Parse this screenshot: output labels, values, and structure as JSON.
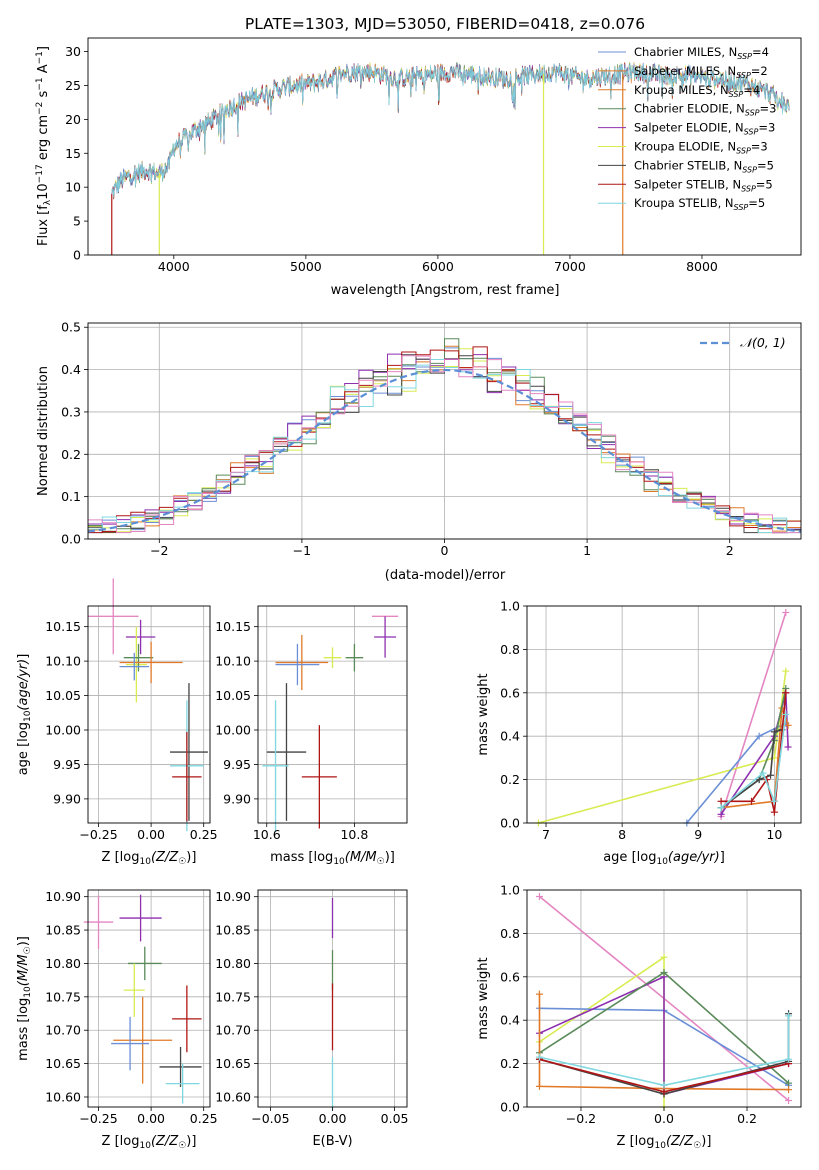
{
  "figure": {
    "title": "PLATE=1303, MJD=53050, FIBERID=0418, z=0.076"
  },
  "palette": {
    "Chabrier MILES": "#6b8fd6",
    "Salpeter MILES": "#e07a28",
    "Kroupa MILES": "#e07a28",
    "Chabrier ELODIE": "#5a8a5a",
    "Salpeter ELODIE": "#8e2fb0",
    "Kroupa ELODIE": "#d8ec52",
    "Chabrier STELIB": "#444444",
    "Salpeter STELIB": "#b01515",
    "Kroupa STELIB": "#7fd8e0",
    "pink": "#e486c2",
    "gaussian": "#5b8fd6"
  },
  "legend_labels": [
    {
      "name": "Chabrier MILES",
      "text": "Chabrier MILES, N",
      "sub": "SSP",
      "tail": "=4"
    },
    {
      "name": "Salpeter MILES",
      "text": "Salpeter MILES, N",
      "sub": "SSP",
      "tail": "=2"
    },
    {
      "name": "Kroupa MILES",
      "text": "Kroupa MILES, N",
      "sub": "SSP",
      "tail": "=4"
    },
    {
      "name": "Chabrier ELODIE",
      "text": "Chabrier ELODIE, N",
      "sub": "SSP",
      "tail": "=3"
    },
    {
      "name": "Salpeter ELODIE",
      "text": "Salpeter ELODIE, N",
      "sub": "SSP",
      "tail": "=3"
    },
    {
      "name": "Kroupa ELODIE",
      "text": "Kroupa ELODIE, N",
      "sub": "SSP",
      "tail": "=3"
    },
    {
      "name": "Chabrier STELIB",
      "text": "Chabrier STELIB, N",
      "sub": "SSP",
      "tail": "=5"
    },
    {
      "name": "Salpeter STELIB",
      "text": "Salpeter STELIB, N",
      "sub": "SSP",
      "tail": "=5"
    },
    {
      "name": "Kroupa STELIB",
      "text": "Kroupa STELIB, N",
      "sub": "SSP",
      "tail": "=5"
    }
  ],
  "chart_data": [
    {
      "id": "spectrum",
      "type": "line",
      "xlabel": "wavelength [Angstrom, rest frame]",
      "ylabel": "Flux [fλ10⁻¹⁷ erg cm⁻² s⁻¹ A⁻¹]",
      "xlim": [
        3350,
        8750
      ],
      "ylim": [
        0,
        32
      ],
      "xticks": [
        4000,
        5000,
        6000,
        7000,
        8000
      ],
      "yticks": [
        0,
        5,
        10,
        15,
        20,
        25,
        30
      ],
      "continuum": [
        [
          3530,
          9
        ],
        [
          3600,
          11
        ],
        [
          3700,
          12
        ],
        [
          3800,
          12.5
        ],
        [
          3880,
          12
        ],
        [
          3960,
          13
        ],
        [
          4000,
          16
        ],
        [
          4100,
          17.5
        ],
        [
          4200,
          19
        ],
        [
          4300,
          20
        ],
        [
          4400,
          21.5
        ],
        [
          4500,
          22.5
        ],
        [
          4700,
          24
        ],
        [
          4900,
          25
        ],
        [
          5100,
          25.5
        ],
        [
          5300,
          27
        ],
        [
          5500,
          27
        ],
        [
          5700,
          26
        ],
        [
          5900,
          26.5
        ],
        [
          6100,
          27
        ],
        [
          6300,
          26.5
        ],
        [
          6500,
          26
        ],
        [
          6700,
          26.5
        ],
        [
          6900,
          27
        ],
        [
          7100,
          26
        ],
        [
          7300,
          26.5
        ],
        [
          7500,
          27
        ],
        [
          7700,
          26.5
        ],
        [
          7900,
          26.5
        ],
        [
          8100,
          26
        ],
        [
          8300,
          25.5
        ],
        [
          8500,
          24
        ],
        [
          8650,
          22
        ]
      ],
      "legend_position": "upper-right",
      "grid": false
    },
    {
      "id": "residuals",
      "type": "histogram",
      "xlabel": "(data-model)/error",
      "ylabel": "Normed distribution",
      "xlim": [
        -2.5,
        2.5
      ],
      "ylim": [
        0,
        0.51
      ],
      "xticks": [
        -2,
        -1,
        0,
        1,
        2
      ],
      "yticks": [
        0.0,
        0.1,
        0.2,
        0.3,
        0.4,
        0.5
      ],
      "bin_width": 0.1,
      "gaussian_label": "N(0,1)",
      "legend_position": "upper-right",
      "grid": true
    },
    {
      "id": "age-vs-Z",
      "type": "scatter",
      "xlabel": "Z [log10(Z/Z☉)]",
      "ylabel": "age [log10(age/yr)]",
      "xlim": [
        -0.3,
        0.28
      ],
      "ylim": [
        9.865,
        10.18
      ],
      "xticks": [
        -0.25,
        0.0,
        0.25
      ],
      "yticks": [
        9.9,
        9.95,
        10.0,
        10.05,
        10.1,
        10.15
      ],
      "points": [
        {
          "c": "pink",
          "x": -0.18,
          "xerr": 0.12,
          "y": 10.165,
          "yerr": 0.055
        },
        {
          "c": "Salpeter ELODIE",
          "x": -0.05,
          "xerr": 0.07,
          "y": 10.135,
          "yerr": 0.025
        },
        {
          "c": "Kroupa ELODIE",
          "x": -0.07,
          "xerr": 0.05,
          "y": 10.095,
          "yerr": 0.055
        },
        {
          "c": "Chabrier ELODIE",
          "x": -0.06,
          "xerr": 0.07,
          "y": 10.105,
          "yerr": 0.02
        },
        {
          "c": "Kroupa MILES",
          "x": 0.0,
          "xerr": 0.15,
          "y": 10.098,
          "yerr": 0.03
        },
        {
          "c": "Chabrier MILES",
          "x": -0.08,
          "xerr": 0.07,
          "y": 10.092,
          "yerr": 0.02
        },
        {
          "c": "Chabrier STELIB",
          "x": 0.18,
          "xerr": 0.09,
          "y": 9.968,
          "yerr": 0.1
        },
        {
          "c": "Kroupa STELIB",
          "x": 0.17,
          "xerr": 0.08,
          "y": 9.948,
          "yerr": 0.095
        },
        {
          "c": "Salpeter STELIB",
          "x": 0.17,
          "xerr": 0.07,
          "y": 9.932,
          "yerr": 0.065
        }
      ],
      "grid": true
    },
    {
      "id": "age-vs-mass",
      "type": "scatter",
      "xlabel": "mass [log10(M/M☉)]",
      "ylabel": "",
      "xlim": [
        10.58,
        10.92
      ],
      "ylim": [
        9.865,
        10.18
      ],
      "xticks": [
        10.6,
        10.8
      ],
      "yticks": [
        9.9,
        9.95,
        10.0,
        10.05,
        10.1,
        10.15
      ],
      "points": [
        {
          "c": "pink",
          "x": 10.87,
          "xerr": 0.03,
          "y": 10.165,
          "yerr": 0.0
        },
        {
          "c": "Salpeter ELODIE",
          "x": 10.87,
          "xerr": 0.025,
          "y": 10.135,
          "yerr": 0.03
        },
        {
          "c": "Chabrier ELODIE",
          "x": 10.8,
          "xerr": 0.02,
          "y": 10.105,
          "yerr": 0.02
        },
        {
          "c": "Kroupa ELODIE",
          "x": 10.75,
          "xerr": 0.02,
          "y": 10.105,
          "yerr": 0.015
        },
        {
          "c": "Kroupa MILES",
          "x": 10.68,
          "xerr": 0.06,
          "y": 10.098,
          "yerr": 0.04
        },
        {
          "c": "Chabrier MILES",
          "x": 10.67,
          "xerr": 0.05,
          "y": 10.095,
          "yerr": 0.03
        },
        {
          "c": "Chabrier STELIB",
          "x": 10.645,
          "xerr": 0.045,
          "y": 9.968,
          "yerr": 0.1
        },
        {
          "c": "Kroupa STELIB",
          "x": 10.62,
          "xerr": 0.03,
          "y": 9.948,
          "yerr": 0.095
        },
        {
          "c": "Salpeter STELIB",
          "x": 10.72,
          "xerr": 0.04,
          "y": 9.932,
          "yerr": 0.075
        }
      ],
      "grid": true
    },
    {
      "id": "massweight-vs-age",
      "type": "line",
      "xlabel": "age [log10(age/yr)]",
      "ylabel": "mass weight",
      "xlim": [
        6.75,
        10.35
      ],
      "ylim": [
        0,
        1.0
      ],
      "xticks": [
        7,
        8,
        9,
        10
      ],
      "yticks": [
        0.0,
        0.2,
        0.4,
        0.6,
        0.8,
        1.0
      ],
      "series": [
        {
          "c": "pink",
          "pts": [
            [
              9.3,
              0.03
            ],
            [
              10.15,
              0.97
            ]
          ]
        },
        {
          "c": "Kroupa ELODIE",
          "pts": [
            [
              6.9,
              0.0
            ],
            [
              10.0,
              0.3
            ],
            [
              10.15,
              0.7
            ]
          ]
        },
        {
          "c": "Chabrier MILES",
          "pts": [
            [
              8.85,
              0.0
            ],
            [
              9.8,
              0.4
            ],
            [
              10.15,
              0.46
            ]
          ]
        },
        {
          "c": "Salpeter ELODIE",
          "pts": [
            [
              9.3,
              0.04
            ],
            [
              10.0,
              0.4
            ],
            [
              10.15,
              0.6
            ],
            [
              10.18,
              0.35
            ]
          ]
        },
        {
          "c": "Kroupa MILES",
          "pts": [
            [
              9.3,
              0.07
            ],
            [
              10.0,
              0.1
            ],
            [
              10.1,
              0.53
            ],
            [
              10.18,
              0.45
            ]
          ]
        },
        {
          "c": "Chabrier ELODIE",
          "pts": [
            [
              9.3,
              0.07
            ],
            [
              9.8,
              0.2
            ],
            [
              10.0,
              0.38
            ],
            [
              10.15,
              0.62
            ]
          ]
        },
        {
          "c": "Chabrier STELIB",
          "pts": [
            [
              9.3,
              0.07
            ],
            [
              9.8,
              0.2
            ],
            [
              9.95,
              0.22
            ],
            [
              10.0,
              0.42
            ],
            [
              10.1,
              0.43
            ]
          ]
        },
        {
          "c": "Salpeter STELIB",
          "pts": [
            [
              9.3,
              0.1
            ],
            [
              9.7,
              0.1
            ],
            [
              9.9,
              0.2
            ],
            [
              10.0,
              0.05
            ],
            [
              10.15,
              0.6
            ]
          ]
        },
        {
          "c": "Kroupa STELIB",
          "pts": [
            [
              9.3,
              0.07
            ],
            [
              9.85,
              0.23
            ],
            [
              10.0,
              0.1
            ],
            [
              10.15,
              0.5
            ]
          ]
        }
      ],
      "grid": true
    },
    {
      "id": "mass-vs-Z",
      "type": "scatter",
      "xlabel": "Z [log10(Z/Z☉)]",
      "ylabel": "mass [log10(M/M☉)]",
      "xlim": [
        -0.3,
        0.28
      ],
      "ylim": [
        10.585,
        10.91
      ],
      "xticks": [
        -0.25,
        0.0,
        0.25
      ],
      "yticks": [
        10.6,
        10.65,
        10.7,
        10.75,
        10.8,
        10.85,
        10.9
      ],
      "points": [
        {
          "c": "pink",
          "x": -0.25,
          "xerr": 0.07,
          "y": 10.862,
          "yerr": 0.04
        },
        {
          "c": "Salpeter ELODIE",
          "x": -0.05,
          "xerr": 0.1,
          "y": 10.868,
          "yerr": 0.035
        },
        {
          "c": "Chabrier ELODIE",
          "x": -0.03,
          "xerr": 0.08,
          "y": 10.8,
          "yerr": 0.025
        },
        {
          "c": "Kroupa ELODIE",
          "x": -0.08,
          "xerr": 0.05,
          "y": 10.76,
          "yerr": 0.04
        },
        {
          "c": "Kroupa MILES",
          "x": -0.04,
          "xerr": 0.14,
          "y": 10.685,
          "yerr": 0.065
        },
        {
          "c": "Chabrier MILES",
          "x": -0.1,
          "xerr": 0.09,
          "y": 10.68,
          "yerr": 0.04
        },
        {
          "c": "Salpeter STELIB",
          "x": 0.17,
          "xerr": 0.07,
          "y": 10.717,
          "yerr": 0.05
        },
        {
          "c": "Chabrier STELIB",
          "x": 0.14,
          "xerr": 0.1,
          "y": 10.645,
          "yerr": 0.03
        },
        {
          "c": "Kroupa STELIB",
          "x": 0.15,
          "xerr": 0.08,
          "y": 10.62,
          "yerr": 0.03
        }
      ],
      "grid": true
    },
    {
      "id": "mass-vs-ebv",
      "type": "scatter",
      "xlabel": "E(B-V)",
      "ylabel": "",
      "xlim": [
        -0.06,
        0.06
      ],
      "ylim": [
        10.585,
        10.91
      ],
      "xticks": [
        -0.05,
        0.0,
        0.05
      ],
      "yticks": [
        10.6,
        10.65,
        10.7,
        10.75,
        10.8,
        10.85,
        10.9
      ],
      "points": [
        {
          "c": "Salpeter ELODIE",
          "x": 0.0,
          "xerr": 0.0,
          "y": 10.868,
          "yerr": 0.03
        },
        {
          "c": "Chabrier ELODIE",
          "x": 0.0,
          "xerr": 0.0,
          "y": 10.79,
          "yerr": 0.03
        },
        {
          "c": "Salpeter STELIB",
          "x": 0.0,
          "xerr": 0.0,
          "y": 10.72,
          "yerr": 0.05
        },
        {
          "c": "Kroupa STELIB",
          "x": 0.0,
          "xerr": 0.0,
          "y": 10.62,
          "yerr": 0.04
        }
      ],
      "grid": true
    },
    {
      "id": "massweight-vs-Z",
      "type": "line",
      "xlabel": "Z [log10(Z/Z☉)]",
      "ylabel": "mass weight",
      "xlim": [
        -0.33,
        0.33
      ],
      "ylim": [
        0,
        1.0
      ],
      "xticks": [
        -0.2,
        0.0,
        0.2
      ],
      "yticks": [
        0.0,
        0.2,
        0.4,
        0.6,
        0.8,
        1.0
      ],
      "series": [
        {
          "c": "pink",
          "pts": [
            [
              -0.3,
              0.97
            ],
            [
              0.3,
              0.03
            ]
          ]
        },
        {
          "c": "Kroupa ELODIE",
          "pts": [
            [
              -0.3,
              0.3
            ],
            [
              0.0,
              0.69
            ],
            [
              0.0,
              0.0
            ]
          ]
        },
        {
          "c": "Chabrier MILES",
          "pts": [
            [
              -0.3,
              0.455
            ],
            [
              0.0,
              0.445
            ],
            [
              0.3,
              0.1
            ]
          ]
        },
        {
          "c": "Salpeter ELODIE",
          "pts": [
            [
              -0.3,
              0.34
            ],
            [
              0.0,
              0.6
            ],
            [
              0.0,
              0.06
            ],
            [
              0.3,
              0.2
            ]
          ]
        },
        {
          "c": "Chabrier ELODIE",
          "pts": [
            [
              -0.3,
              0.25
            ],
            [
              0.0,
              0.62
            ],
            [
              0.3,
              0.11
            ]
          ]
        },
        {
          "c": "Kroupa MILES",
          "pts": [
            [
              -0.3,
              0.52
            ],
            [
              -0.3,
              0.095
            ],
            [
              0.0,
              0.085
            ],
            [
              0.3,
              0.08
            ]
          ]
        },
        {
          "c": "Chabrier STELIB",
          "pts": [
            [
              -0.3,
              0.22
            ],
            [
              0.0,
              0.06
            ],
            [
              0.3,
              0.21
            ],
            [
              0.3,
              0.43
            ]
          ]
        },
        {
          "c": "Salpeter STELIB",
          "pts": [
            [
              -0.3,
              0.22
            ],
            [
              0.0,
              0.07
            ],
            [
              0.3,
              0.2
            ]
          ]
        },
        {
          "c": "Kroupa STELIB",
          "pts": [
            [
              -0.3,
              0.23
            ],
            [
              0.0,
              0.1
            ],
            [
              0.3,
              0.22
            ],
            [
              0.3,
              0.42
            ]
          ]
        }
      ],
      "grid": true
    }
  ]
}
